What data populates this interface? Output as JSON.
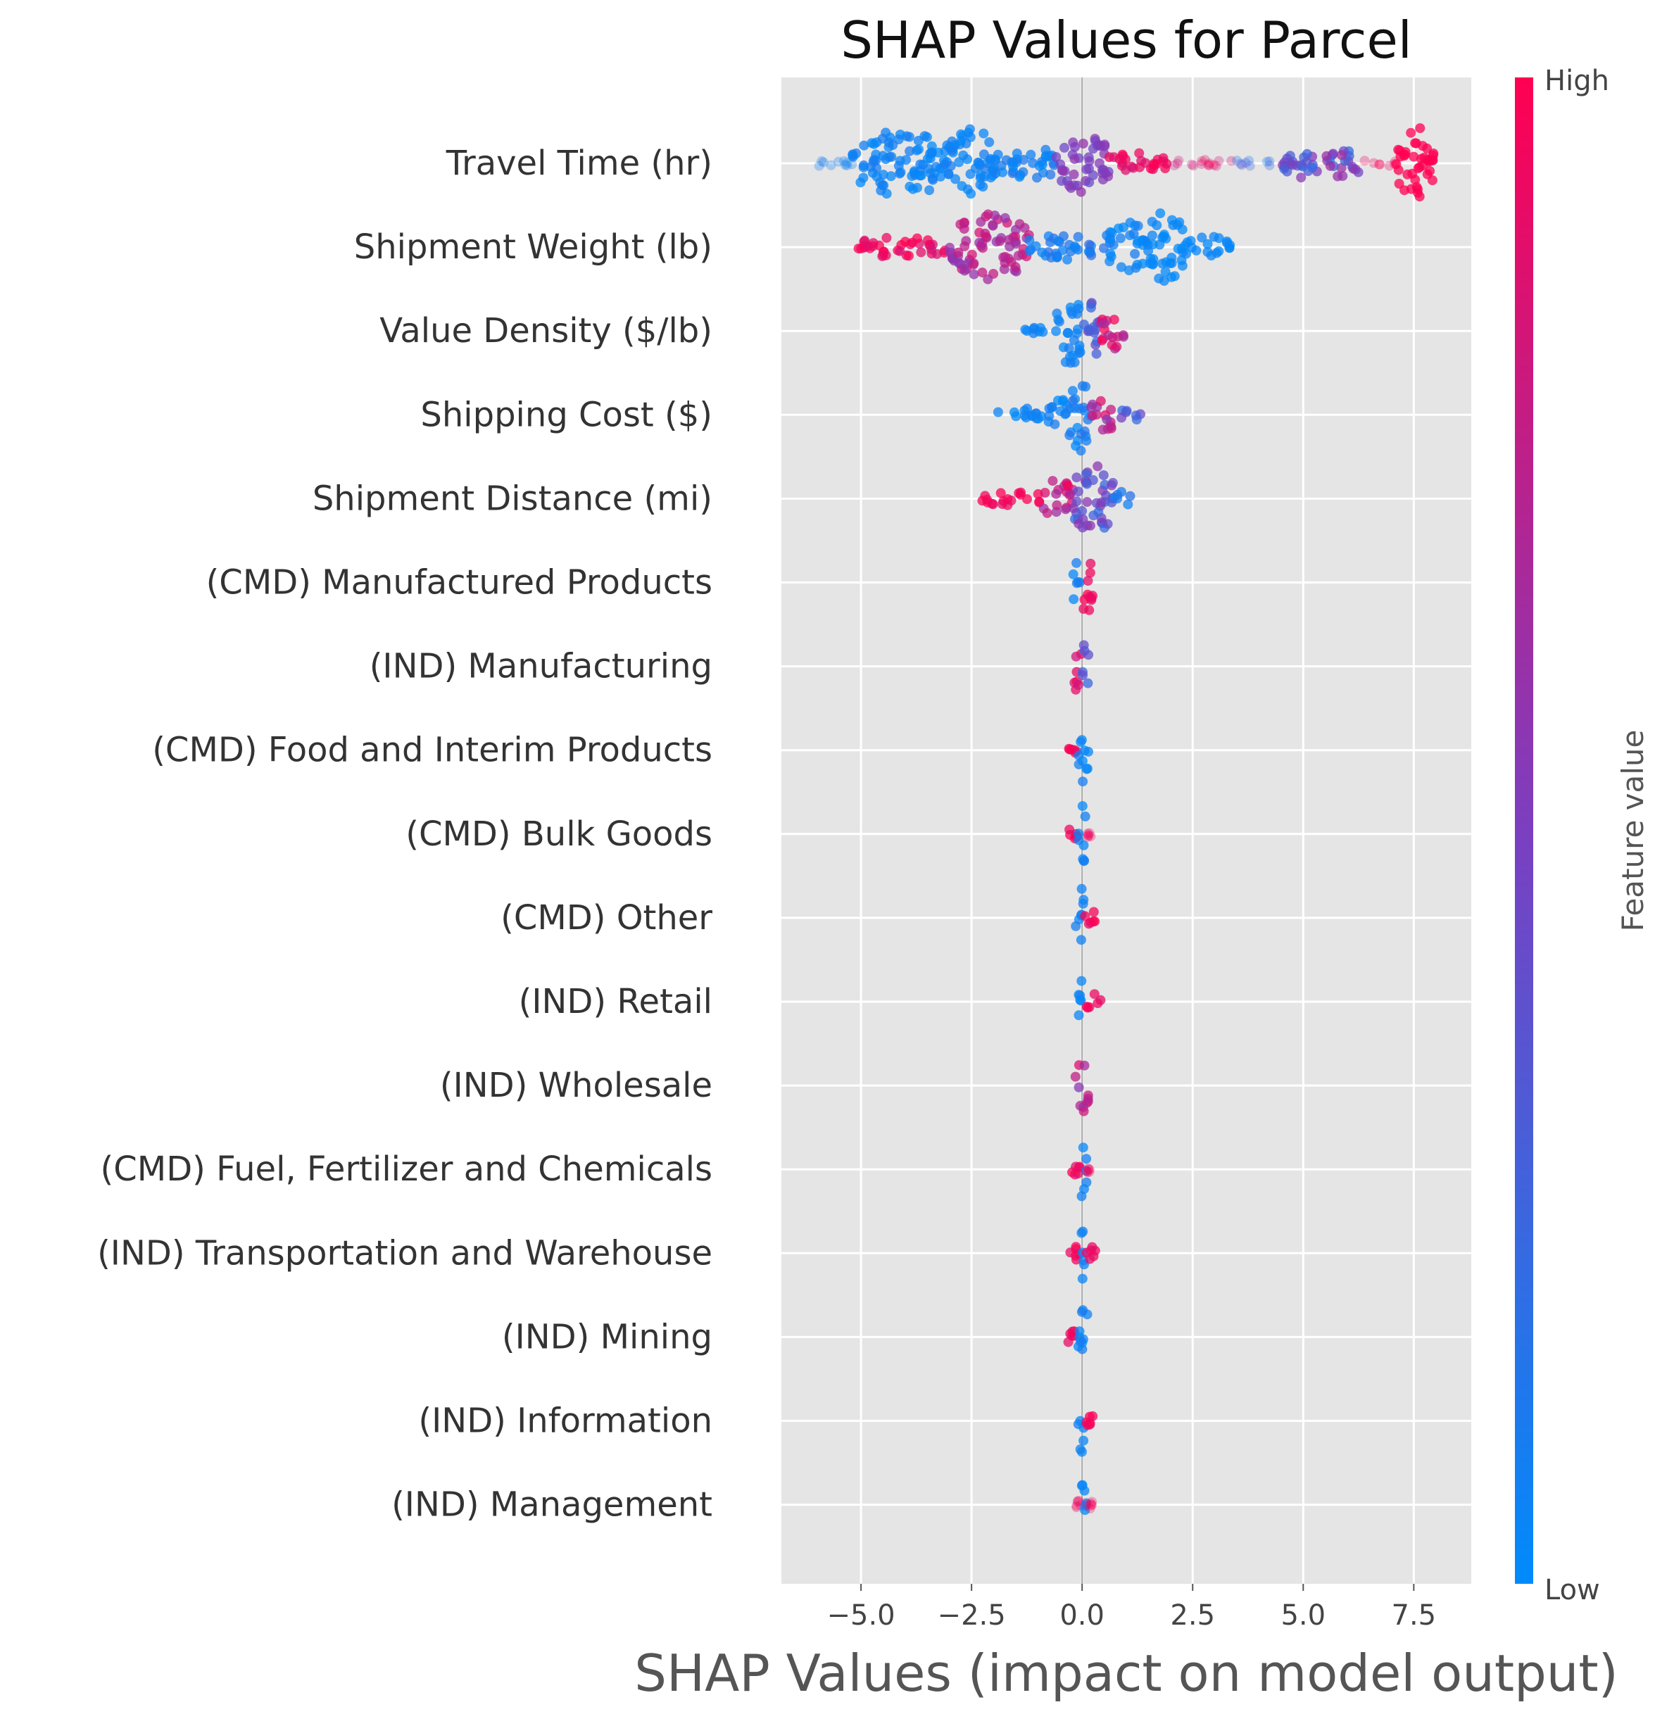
{
  "chart_data": {
    "type": "scatter",
    "title": "SHAP Values for Parcel",
    "xlabel": "SHAP Values (impact on model output)",
    "ylabel": "",
    "xlim": [
      -6.8,
      8.8
    ],
    "xticks": [
      -5.0,
      -2.5,
      0.0,
      2.5,
      5.0,
      7.5
    ],
    "xtick_labels": [
      "−5.0",
      "−2.5",
      "0.0",
      "2.5",
      "5.0",
      "7.5"
    ],
    "grid": true,
    "colorbar": {
      "label": "Feature value",
      "high_label": "High",
      "low_label": "Low",
      "low_color": "#008bfb",
      "mid_color": "#7b3fc0",
      "high_color": "#ff0052"
    },
    "features": [
      {
        "name": "Travel Time (hr)",
        "min": -6.1,
        "max": 8.0,
        "dist": [
          [
            -6.1,
            -5.2,
            0.12,
            0.05,
            0.1
          ],
          [
            -5.2,
            -3.0,
            0.9,
            0.0,
            0.1
          ],
          [
            -3.0,
            -2.0,
            1.0,
            0.0,
            0.1
          ],
          [
            -2.0,
            -0.6,
            0.5,
            0.0,
            0.15
          ],
          [
            -0.6,
            0.6,
            0.8,
            0.4,
            0.6
          ],
          [
            0.6,
            2.0,
            0.3,
            0.85,
            1.0
          ],
          [
            2.0,
            3.5,
            0.1,
            0.8,
            1.0
          ],
          [
            3.5,
            4.5,
            0.06,
            0.1,
            0.4
          ],
          [
            4.5,
            6.3,
            0.45,
            0.2,
            0.65
          ],
          [
            6.3,
            7.1,
            0.06,
            0.9,
            1.0
          ],
          [
            7.1,
            8.0,
            1.0,
            1.0,
            1.0
          ]
        ]
      },
      {
        "name": "Shipment Weight (lb)",
        "min": -5.1,
        "max": 3.4,
        "dist": [
          [
            -5.1,
            -3.0,
            0.3,
            0.85,
            1.0
          ],
          [
            -3.0,
            -1.2,
            0.9,
            0.55,
            0.85
          ],
          [
            -1.2,
            0.5,
            0.35,
            0.0,
            0.2
          ],
          [
            0.5,
            1.5,
            0.7,
            0.0,
            0.1
          ],
          [
            1.5,
            2.3,
            1.0,
            0.0,
            0.05
          ],
          [
            2.3,
            3.4,
            0.3,
            0.0,
            0.05
          ]
        ]
      },
      {
        "name": "Value Density ($/lb)",
        "min": -1.3,
        "max": 1.0,
        "dist": [
          [
            -1.3,
            -0.6,
            0.15,
            0.0,
            0.1
          ],
          [
            -0.6,
            0.0,
            1.0,
            0.0,
            0.1
          ],
          [
            0.0,
            0.4,
            0.8,
            0.2,
            0.5
          ],
          [
            0.4,
            1.0,
            0.55,
            0.65,
            1.0
          ]
        ]
      },
      {
        "name": "Shipping Cost ($)",
        "min": -1.9,
        "max": 1.4,
        "dist": [
          [
            -1.9,
            -0.8,
            0.18,
            0.0,
            0.1
          ],
          [
            -0.8,
            -0.3,
            0.5,
            0.0,
            0.1
          ],
          [
            -0.3,
            0.2,
            1.0,
            0.0,
            0.15
          ],
          [
            0.2,
            0.8,
            0.45,
            0.5,
            0.9
          ],
          [
            0.8,
            1.4,
            0.15,
            0.2,
            0.5
          ]
        ]
      },
      {
        "name": "Shipment Distance (mi)",
        "min": -2.3,
        "max": 1.1,
        "dist": [
          [
            -2.3,
            -0.9,
            0.2,
            0.9,
            1.0
          ],
          [
            -0.9,
            -0.2,
            0.55,
            0.6,
            1.0
          ],
          [
            -0.2,
            0.7,
            1.0,
            0.2,
            0.6
          ],
          [
            0.7,
            1.1,
            0.25,
            0.0,
            0.2
          ]
        ]
      },
      {
        "name": "(CMD) Manufactured Products",
        "min": -0.25,
        "max": 0.25,
        "dist": [
          [
            -0.25,
            -0.05,
            0.55,
            0.0,
            0.1
          ],
          [
            -0.05,
            0.25,
            0.85,
            0.9,
            1.0
          ]
        ]
      },
      {
        "name": "(IND) Manufacturing",
        "min": -0.2,
        "max": 0.15,
        "dist": [
          [
            -0.2,
            0.0,
            0.75,
            0.8,
            1.0
          ],
          [
            0.0,
            0.15,
            0.8,
            0.2,
            0.5
          ]
        ]
      },
      {
        "name": "(CMD) Food and Interim Products",
        "min": -0.5,
        "max": 0.15,
        "dist": [
          [
            -0.5,
            -0.1,
            0.15,
            0.9,
            1.0
          ],
          [
            -0.1,
            0.15,
            0.9,
            0.0,
            0.1
          ]
        ]
      },
      {
        "name": "(CMD) Bulk Goods",
        "min": -0.4,
        "max": 0.2,
        "dist": [
          [
            -0.4,
            -0.1,
            0.2,
            0.9,
            1.0
          ],
          [
            -0.1,
            0.1,
            0.9,
            0.0,
            0.1
          ],
          [
            0.1,
            0.2,
            0.12,
            0.9,
            1.0
          ]
        ]
      },
      {
        "name": "(CMD) Other",
        "min": -0.15,
        "max": 0.35,
        "dist": [
          [
            -0.15,
            0.05,
            0.9,
            0.0,
            0.1
          ],
          [
            0.05,
            0.35,
            0.2,
            0.9,
            1.0
          ]
        ]
      },
      {
        "name": "(IND) Retail",
        "min": -0.1,
        "max": 0.45,
        "dist": [
          [
            -0.1,
            0.05,
            0.9,
            0.0,
            0.1
          ],
          [
            0.05,
            0.45,
            0.22,
            0.9,
            1.0
          ]
        ]
      },
      {
        "name": "(IND) Wholesale",
        "min": -0.15,
        "max": 0.15,
        "dist": [
          [
            -0.15,
            0.15,
            0.8,
            0.5,
            0.9
          ]
        ]
      },
      {
        "name": "(CMD) Fuel, Fertilizer and Chemicals",
        "min": -0.25,
        "max": 0.2,
        "dist": [
          [
            -0.25,
            -0.05,
            0.15,
            0.9,
            1.0
          ],
          [
            -0.05,
            0.1,
            0.9,
            0.0,
            0.1
          ],
          [
            0.1,
            0.2,
            0.12,
            0.9,
            1.0
          ]
        ]
      },
      {
        "name": "(IND) Transportation and Warehouse",
        "min": -0.3,
        "max": 0.3,
        "dist": [
          [
            -0.3,
            -0.05,
            0.2,
            0.9,
            1.0
          ],
          [
            -0.05,
            0.1,
            0.9,
            0.0,
            0.1
          ],
          [
            0.1,
            0.3,
            0.18,
            0.9,
            1.0
          ]
        ]
      },
      {
        "name": "(IND) Mining",
        "min": -0.4,
        "max": 0.15,
        "dist": [
          [
            -0.4,
            -0.1,
            0.18,
            0.9,
            1.0
          ],
          [
            -0.1,
            0.15,
            0.9,
            0.0,
            0.1
          ]
        ]
      },
      {
        "name": "(IND) Information",
        "min": -0.1,
        "max": 0.3,
        "dist": [
          [
            -0.1,
            0.05,
            0.9,
            0.0,
            0.1
          ],
          [
            0.05,
            0.3,
            0.18,
            0.9,
            1.0
          ]
        ]
      },
      {
        "name": "(IND) Management",
        "min": -0.15,
        "max": 0.25,
        "dist": [
          [
            -0.15,
            0.0,
            0.12,
            0.9,
            1.0
          ],
          [
            -0.05,
            0.1,
            0.9,
            0.0,
            0.1
          ],
          [
            0.1,
            0.25,
            0.12,
            0.9,
            1.0
          ]
        ]
      }
    ]
  }
}
